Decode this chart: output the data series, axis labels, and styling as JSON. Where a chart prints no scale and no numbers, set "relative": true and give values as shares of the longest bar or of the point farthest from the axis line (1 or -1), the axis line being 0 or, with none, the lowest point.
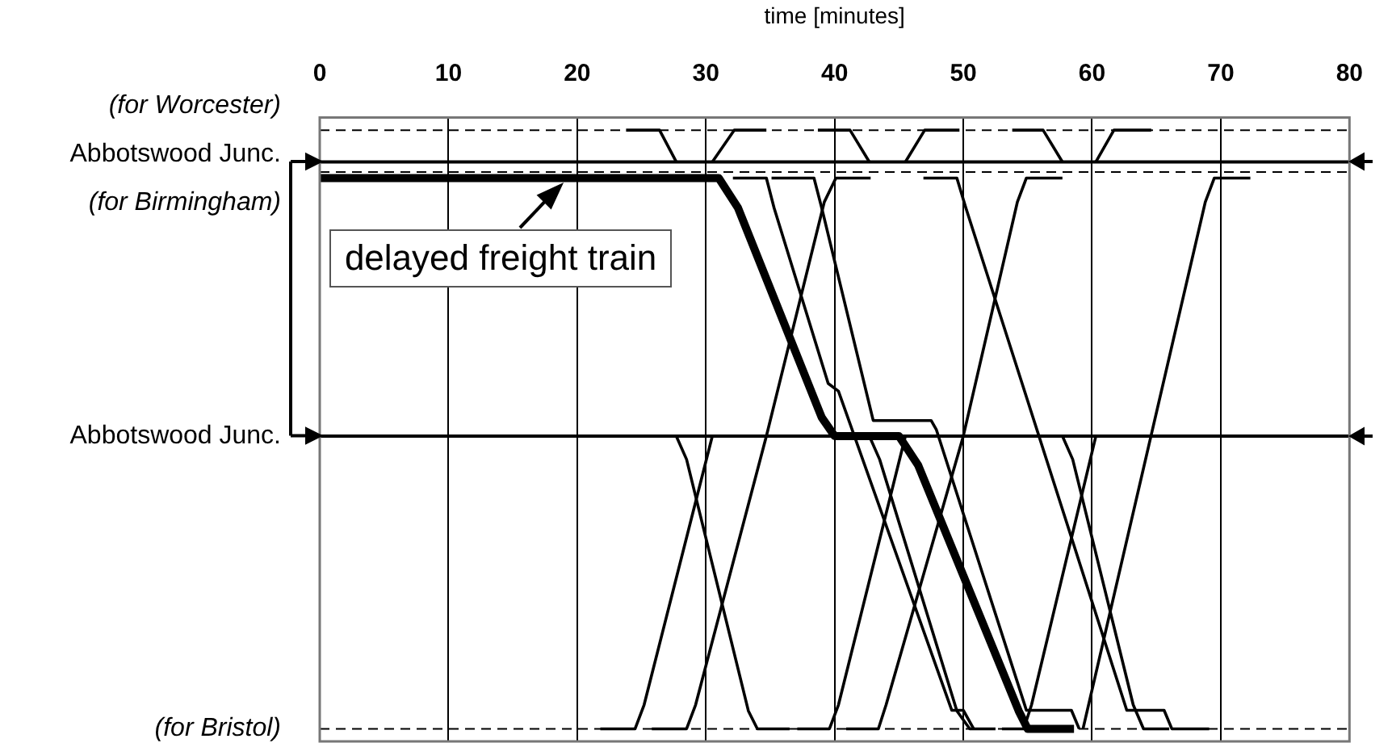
{
  "chart_data": {
    "type": "line",
    "relative": true,
    "xlabel": "time [minutes]",
    "xlim": [
      0,
      80
    ],
    "xticks": [
      0,
      10,
      20,
      30,
      40,
      50,
      60,
      70,
      80
    ],
    "grid": "x",
    "legend": false,
    "ref_lines": [
      {
        "axis": "y",
        "value": 1,
        "label": "(for Worcester)",
        "line_style": "dashed"
      },
      {
        "axis": "y",
        "value": 0.947,
        "label": "Abbotswood Junc.",
        "line_style": "solid"
      },
      {
        "axis": "y",
        "value": 0.93,
        "label": "(for Birmingham)",
        "line_style": "dashed"
      },
      {
        "axis": "y",
        "value": 0.489,
        "label": "Abbotswood Junc.",
        "line_style": "solid"
      },
      {
        "axis": "y",
        "value": 0,
        "label": "(for Bristol)",
        "line_style": "dashed"
      }
    ],
    "annotations": [
      {
        "text": "delayed freight train",
        "x": 19,
        "y": 0.92
      }
    ],
    "series": [
      {
        "color": "#000000",
        "x": [
          0,
          31,
          32.5,
          39,
          40,
          45,
          46.5,
          54.3,
          55,
          58.6
        ],
        "values": [
          0.92,
          0.92,
          0.87,
          0.52,
          0.489,
          0.489,
          0.44,
          0.03,
          0,
          0
        ]
      },
      {
        "color": "#000000",
        "x": [
          23.8,
          26.4,
          27.7
        ],
        "values": [
          1,
          1,
          0.947
        ]
      },
      {
        "color": "#000000",
        "x": [
          27.7,
          28.5,
          33.3,
          34,
          36.5
        ],
        "values": [
          0.489,
          0.45,
          0.03,
          0,
          0
        ]
      },
      {
        "color": "#000000",
        "x": [
          21.8,
          24.5,
          25.2,
          30.5
        ],
        "values": [
          0,
          0,
          0.04,
          0.489
        ]
      },
      {
        "color": "#000000",
        "x": [
          30.5,
          32.2,
          34.7
        ],
        "values": [
          0.947,
          1,
          1
        ]
      },
      {
        "color": "#000000",
        "x": [
          25.8,
          28.5,
          29.2,
          34.7,
          39.2,
          40.1,
          42.8
        ],
        "values": [
          0,
          0,
          0.04,
          0.489,
          0.88,
          0.92,
          0.92
        ]
      },
      {
        "color": "#000000",
        "x": [
          32.1,
          34.7,
          35.3,
          39.5,
          40.3,
          49.1,
          50,
          50.8
        ],
        "values": [
          0.92,
          0.92,
          0.87,
          0.577,
          0.564,
          0.031,
          0.031,
          0
        ]
      },
      {
        "color": "#000000",
        "x": [
          35.1,
          38.4,
          39,
          43,
          47.5,
          47.9,
          54.9,
          58.4,
          59
        ],
        "values": [
          0.92,
          0.92,
          0.87,
          0.515,
          0.515,
          0.5,
          0.031,
          0.031,
          0
        ]
      },
      {
        "color": "#000000",
        "x": [
          38.7,
          41.2,
          42.7
        ],
        "values": [
          1,
          1,
          0.947
        ]
      },
      {
        "color": "#000000",
        "x": [
          42.7,
          43.5,
          49.5,
          50.5,
          52.5
        ],
        "values": [
          0.489,
          0.45,
          0.03,
          0,
          0
        ]
      },
      {
        "color": "#000000",
        "x": [
          37.1,
          39.6,
          40.3,
          45.5
        ],
        "values": [
          0,
          0,
          0.04,
          0.489
        ]
      },
      {
        "color": "#000000",
        "x": [
          45.5,
          47,
          49.7
        ],
        "values": [
          0.947,
          1,
          1
        ]
      },
      {
        "color": "#000000",
        "x": [
          40.9,
          43.4,
          44,
          50,
          54.2,
          54.9,
          57.7
        ],
        "values": [
          0,
          0,
          0.04,
          0.489,
          0.88,
          0.92,
          0.92
        ]
      },
      {
        "color": "#000000",
        "x": [
          46.9,
          49.5,
          50.2,
          62.7,
          65.6,
          66.2,
          69.1
        ],
        "values": [
          0.92,
          0.92,
          0.87,
          0.031,
          0.031,
          0,
          0
        ]
      },
      {
        "color": "#000000",
        "x": [
          53.8,
          56.2,
          57.7
        ],
        "values": [
          1,
          1,
          0.947
        ]
      },
      {
        "color": "#000000",
        "x": [
          57.7,
          58.5,
          63.2,
          64,
          66
        ],
        "values": [
          0.489,
          0.45,
          0.04,
          0,
          0
        ]
      },
      {
        "color": "#000000",
        "x": [
          53,
          54.7,
          55.3,
          60.3
        ],
        "values": [
          0,
          0,
          0.04,
          0.489
        ]
      },
      {
        "color": "#000000",
        "x": [
          60.3,
          61.7,
          64.6
        ],
        "values": [
          0.947,
          1,
          1
        ]
      },
      {
        "color": "#000000",
        "x": [
          59.3,
          68.8,
          69.5,
          72.3
        ],
        "values": [
          0,
          0.88,
          0.92,
          0.92
        ]
      }
    ]
  }
}
